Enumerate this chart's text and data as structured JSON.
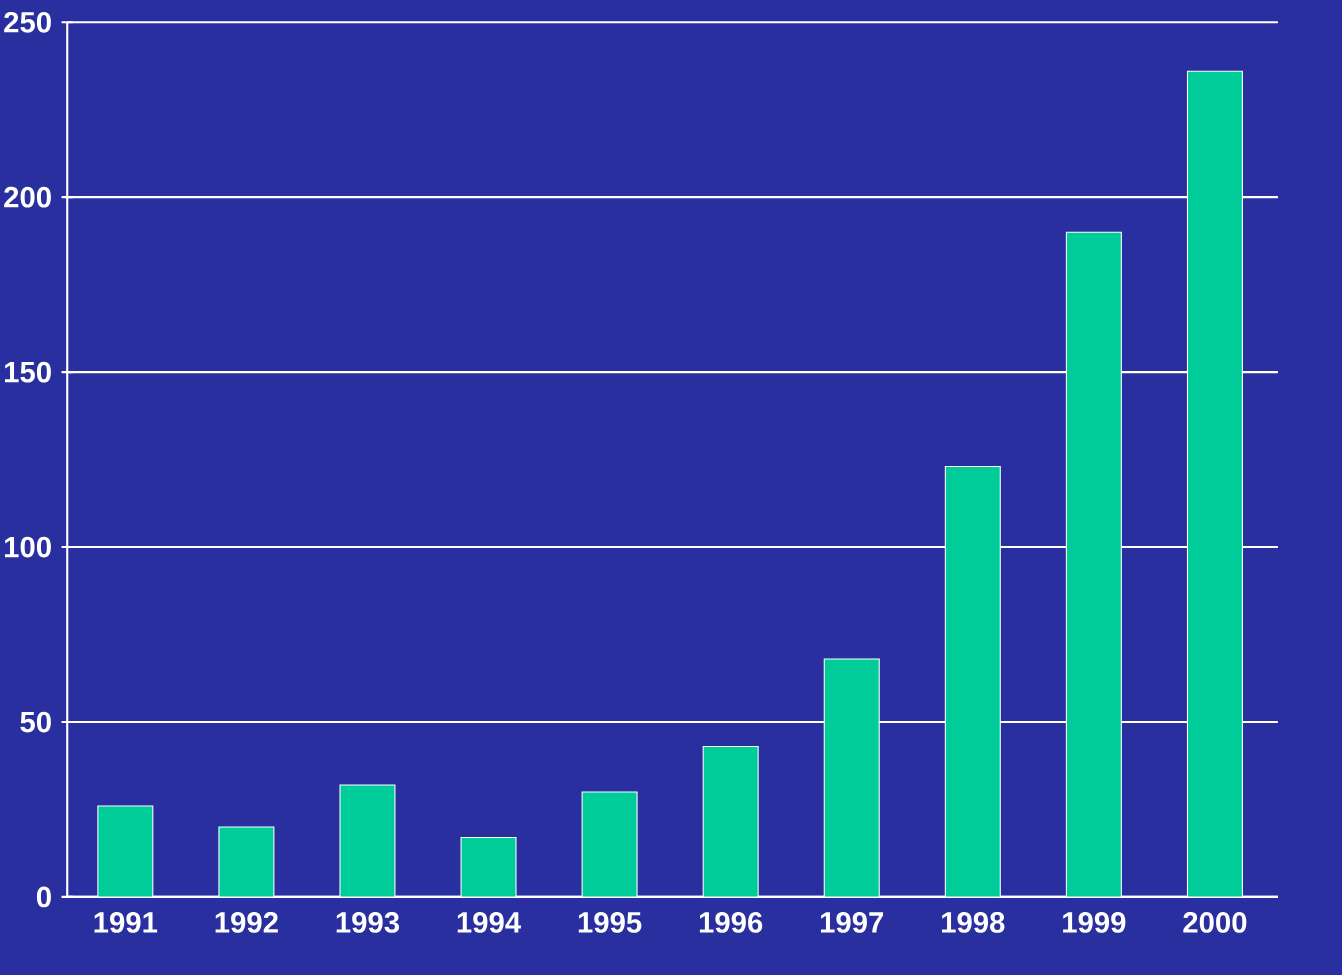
{
  "chart_data": {
    "type": "bar",
    "categories": [
      "1991",
      "1992",
      "1993",
      "1994",
      "1995",
      "1996",
      "1997",
      "1998",
      "1999",
      "2000"
    ],
    "values": [
      26,
      20,
      32,
      17,
      30,
      43,
      68,
      123,
      190,
      236
    ],
    "color": "#00cc99",
    "ylim": [
      0,
      250
    ],
    "yticks": [
      0,
      50,
      100,
      150,
      200,
      250
    ],
    "grid": "y"
  }
}
